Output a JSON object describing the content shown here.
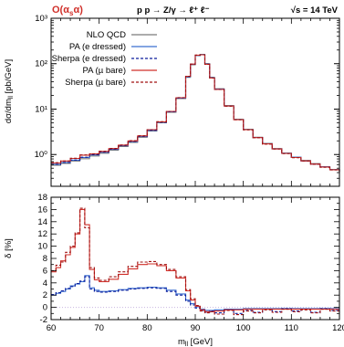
{
  "colors": {
    "nlo": "#7a7a7a",
    "pa_e": "#3b6fd0",
    "sherpa_e": "#0a1c9c",
    "pa_mu": "#d0302a",
    "sherpa_mu": "#a01010",
    "zero": "#c8b4e0"
  },
  "chart_data": [
    {
      "type": "line",
      "order_label": "O(α",
      "order_sub": "s",
      "order_tail": "α)",
      "process": "p p → Z/γ → ℓ⁺ ℓ⁻",
      "energy": "√s = 14 TeV",
      "ylabel": "dσ/dm_ll [pb/GeV]",
      "yscale": "log",
      "ylim": [
        0.2,
        1000
      ],
      "yticks": [
        "10⁻¹",
        "10⁰",
        "10¹",
        "10²",
        "10³"
      ],
      "legend_position": "top-left",
      "legend": [
        "NLO QCD",
        "PA (e dressed)",
        "Sherpa (e dressed)",
        "PA (µ bare)",
        "Sherpa (µ bare)"
      ],
      "x": [
        60,
        62,
        64,
        66,
        68,
        70,
        72,
        74,
        76,
        78,
        80,
        82,
        84,
        86,
        88,
        89,
        90,
        91,
        92,
        93,
        94,
        96,
        98,
        100,
        102,
        104,
        106,
        108,
        110,
        112,
        114,
        116,
        118,
        120
      ],
      "series": [
        {
          "name": "NLO QCD",
          "style": "step",
          "values": [
            0.58,
            0.64,
            0.72,
            0.81,
            0.93,
            1.07,
            1.25,
            1.5,
            1.85,
            2.4,
            3.3,
            5.0,
            8.5,
            17.0,
            50,
            95,
            150,
            160,
            100,
            50,
            28,
            12,
            6.0,
            3.6,
            2.4,
            1.75,
            1.35,
            1.08,
            0.88,
            0.74,
            0.63,
            0.54,
            0.47,
            0.42
          ]
        },
        {
          "name": "PA (e dressed)",
          "style": "step",
          "values": [
            0.61,
            0.67,
            0.75,
            0.86,
            0.98,
            1.12,
            1.3,
            1.56,
            1.92,
            2.48,
            3.4,
            5.1,
            8.7,
            17.5,
            52,
            97,
            152,
            158,
            98,
            49,
            27.5,
            11.8,
            5.9,
            3.55,
            2.38,
            1.73,
            1.34,
            1.07,
            0.87,
            0.73,
            0.62,
            0.535,
            0.465,
            0.415
          ]
        },
        {
          "name": "Sherpa (e dressed)",
          "style": "dashed-step",
          "values": [
            0.61,
            0.67,
            0.76,
            0.87,
            0.99,
            1.13,
            1.31,
            1.57,
            1.93,
            2.49,
            3.41,
            5.12,
            8.72,
            17.6,
            52,
            97,
            153,
            158,
            98,
            49,
            27.3,
            11.7,
            5.88,
            3.53,
            2.37,
            1.72,
            1.33,
            1.06,
            0.86,
            0.72,
            0.615,
            0.53,
            0.46,
            0.41
          ]
        },
        {
          "name": "PA (µ bare)",
          "style": "step",
          "values": [
            0.65,
            0.72,
            0.82,
            0.97,
            1.03,
            1.17,
            1.35,
            1.61,
            2.0,
            2.58,
            3.52,
            5.25,
            8.9,
            17.8,
            53,
            98,
            154,
            157,
            97,
            48.5,
            27.2,
            11.7,
            5.85,
            3.52,
            2.36,
            1.71,
            1.33,
            1.06,
            0.86,
            0.725,
            0.615,
            0.53,
            0.462,
            0.412
          ]
        },
        {
          "name": "Sherpa (µ bare)",
          "style": "dashed-step",
          "values": [
            0.66,
            0.72,
            0.83,
            0.98,
            1.04,
            1.18,
            1.36,
            1.62,
            2.01,
            2.59,
            3.53,
            5.27,
            8.92,
            17.9,
            53,
            98,
            155,
            157,
            97,
            48.3,
            27.0,
            11.6,
            5.83,
            3.5,
            2.35,
            1.7,
            1.32,
            1.05,
            0.85,
            0.72,
            0.61,
            0.525,
            0.458,
            0.408
          ]
        }
      ]
    },
    {
      "type": "line",
      "xlabel": "m_ll [GeV]",
      "ylabel": "δ [%]",
      "xlim": [
        60,
        120
      ],
      "ylim": [
        -2,
        18
      ],
      "xticks": [
        60,
        70,
        80,
        90,
        100,
        110,
        120
      ],
      "yticks": [
        -2,
        0,
        2,
        4,
        6,
        8,
        10,
        12,
        14,
        16,
        18
      ],
      "grid": false,
      "x": [
        60,
        61,
        62,
        63,
        64,
        65,
        66,
        67,
        68,
        69,
        70,
        72,
        74,
        76,
        78,
        80,
        82,
        84,
        86,
        88,
        89,
        90,
        91,
        92,
        93,
        94,
        96,
        98,
        100,
        102,
        104,
        106,
        108,
        110,
        112,
        114,
        116,
        118,
        120
      ],
      "series": [
        {
          "name": "PA (e dressed)",
          "style": "step",
          "values": [
            2.0,
            2.3,
            2.6,
            3.0,
            3.5,
            3.8,
            4.2,
            5.2,
            3.2,
            2.8,
            2.6,
            2.7,
            2.9,
            3.1,
            3.2,
            3.3,
            3.2,
            2.8,
            2.2,
            1.2,
            0.6,
            0.1,
            -0.3,
            -0.5,
            -0.5,
            -0.4,
            -0.3,
            -0.3,
            -0.2,
            -0.2,
            -0.2,
            -0.2,
            -0.2,
            -0.2,
            -0.2,
            -0.2,
            -0.2,
            -0.2,
            -0.2
          ]
        },
        {
          "name": "Sherpa (e dressed)",
          "style": "dashed-step",
          "values": [
            2.1,
            2.4,
            2.7,
            3.1,
            3.4,
            3.9,
            4.3,
            5.0,
            3.0,
            2.6,
            2.5,
            2.6,
            2.8,
            3.0,
            3.1,
            3.2,
            3.1,
            2.6,
            2.0,
            1.0,
            0.4,
            -0.1,
            -0.5,
            -0.8,
            -0.6,
            -0.9,
            -0.4,
            -1.0,
            -0.5,
            -0.8,
            -0.3,
            -0.7,
            -0.2,
            -0.6,
            -0.3,
            -0.8,
            -0.2,
            -0.5,
            -0.3
          ]
        },
        {
          "name": "PA (µ bare)",
          "style": "step",
          "values": [
            5.8,
            6.5,
            7.6,
            8.6,
            9.8,
            12.0,
            16.0,
            13.5,
            6.2,
            4.5,
            4.2,
            4.6,
            5.4,
            6.3,
            7.0,
            7.1,
            6.8,
            6.0,
            4.8,
            2.7,
            1.2,
            0.2,
            -0.4,
            -0.7,
            -0.7,
            -0.6,
            -0.4,
            -0.4,
            -0.3,
            -0.3,
            -0.3,
            -0.3,
            -0.3,
            -0.3,
            -0.3,
            -0.3,
            -0.3,
            -0.3,
            -0.3
          ]
        },
        {
          "name": "Sherpa (µ bare)",
          "style": "dashed-step",
          "values": [
            6.0,
            6.9,
            7.4,
            9.0,
            10.0,
            12.2,
            16.2,
            13.0,
            6.5,
            4.8,
            4.4,
            5.0,
            5.8,
            6.7,
            7.4,
            7.5,
            7.0,
            6.2,
            5.0,
            2.9,
            1.4,
            0.3,
            -0.6,
            -0.9,
            -0.7,
            -1.1,
            -0.5,
            -1.2,
            -0.6,
            -0.9,
            -0.4,
            -0.8,
            -0.3,
            -0.7,
            -0.4,
            -0.9,
            -0.3,
            -0.6,
            -0.4
          ]
        }
      ]
    }
  ]
}
